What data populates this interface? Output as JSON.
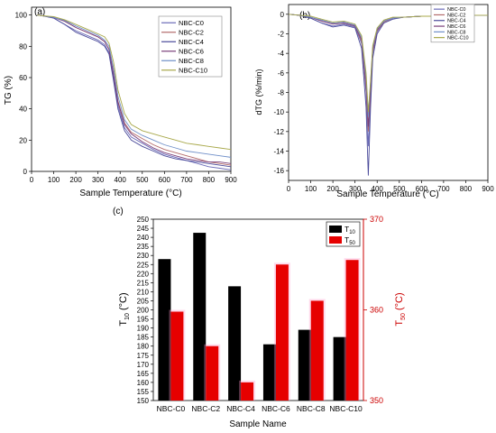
{
  "chart_data": [
    {
      "panel": "(a)",
      "type": "line",
      "xlabel": "Sample Temperature (°C)",
      "ylabel": "TG (%)",
      "xlim": [
        0,
        900
      ],
      "ylim": [
        0,
        105
      ],
      "xticks": [
        0,
        100,
        200,
        300,
        400,
        500,
        600,
        700,
        800,
        900
      ],
      "yticks": [
        0,
        20,
        40,
        60,
        80,
        100
      ],
      "legend_position": "top-right",
      "x": [
        25,
        50,
        100,
        150,
        200,
        250,
        300,
        330,
        350,
        370,
        390,
        420,
        450,
        500,
        550,
        600,
        650,
        700,
        750,
        800,
        850,
        900
      ],
      "series": [
        {
          "name": "NBC-C0",
          "color": "#6b6bb8",
          "values": [
            100,
            99.5,
            98,
            94,
            90,
            87,
            84,
            81,
            76,
            60,
            42,
            28,
            22,
            18,
            14,
            11,
            9,
            7,
            5,
            3,
            2,
            1
          ]
        },
        {
          "name": "NBC-C2",
          "color": "#b36b6b",
          "values": [
            100,
            99.5,
            98.5,
            96,
            92,
            89,
            86,
            83,
            78,
            63,
            45,
            31,
            25,
            21,
            17,
            14,
            12,
            10,
            8,
            6,
            5,
            4
          ]
        },
        {
          "name": "NBC-C4",
          "color": "#4a4a9a",
          "values": [
            100,
            99.5,
            98,
            94,
            89,
            86,
            83,
            80,
            75,
            58,
            40,
            26,
            20,
            16,
            13,
            10,
            8,
            7,
            6,
            5,
            4,
            3
          ]
        },
        {
          "name": "NBC-C6",
          "color": "#7a3f7a",
          "values": [
            100,
            99.5,
            98.5,
            96,
            92,
            89,
            86,
            83,
            78,
            62,
            44,
            30,
            24,
            19,
            15,
            12,
            10,
            8,
            7,
            6,
            6,
            5
          ]
        },
        {
          "name": "NBC-C8",
          "color": "#6f8fc8",
          "values": [
            100,
            99.5,
            98.5,
            96.5,
            93,
            90,
            87,
            84,
            80,
            66,
            48,
            33,
            27,
            23,
            20,
            17,
            15,
            13,
            12,
            11,
            10,
            9
          ]
        },
        {
          "name": "NBC-C10",
          "color": "#a8a84a",
          "values": [
            100,
            99.5,
            99,
            97,
            94,
            91,
            88,
            86,
            82,
            70,
            52,
            37,
            30,
            26,
            24,
            22,
            20,
            18,
            17,
            16,
            15,
            14
          ]
        }
      ]
    },
    {
      "panel": "(b)",
      "type": "line",
      "xlabel": "Sample Temperature (°C)",
      "ylabel": "dTG (%/min)",
      "xlim": [
        0,
        900
      ],
      "ylim": [
        -17,
        1
      ],
      "xticks": [
        0,
        100,
        200,
        300,
        400,
        500,
        600,
        700,
        800,
        900
      ],
      "yticks": [
        0,
        -2,
        -4,
        -6,
        -8,
        -10,
        -12,
        -14,
        -16
      ],
      "legend_position": "top-right",
      "x": [
        0,
        50,
        100,
        150,
        200,
        250,
        300,
        330,
        350,
        360,
        370,
        380,
        400,
        430,
        470,
        520,
        600,
        700,
        800,
        900
      ],
      "series": [
        {
          "name": "NBC-C0",
          "color": "#6b6bb8",
          "values": [
            0,
            -0.1,
            -0.4,
            -0.9,
            -1.2,
            -1.0,
            -1.3,
            -3.0,
            -8.0,
            -13.5,
            -8.5,
            -4.0,
            -1.8,
            -0.8,
            -0.4,
            -0.3,
            -0.2,
            -0.2,
            -0.1,
            -0.1
          ]
        },
        {
          "name": "NBC-C2",
          "color": "#b36b6b",
          "values": [
            0,
            -0.1,
            -0.3,
            -0.7,
            -1.0,
            -0.9,
            -1.2,
            -2.8,
            -7.5,
            -12.0,
            -8.0,
            -3.8,
            -1.7,
            -0.8,
            -0.4,
            -0.3,
            -0.2,
            -0.2,
            -0.1,
            -0.1
          ]
        },
        {
          "name": "NBC-C4",
          "color": "#4a4a9a",
          "values": [
            0,
            -0.1,
            -0.4,
            -0.9,
            -1.3,
            -1.1,
            -1.4,
            -3.5,
            -9.5,
            -16.5,
            -9.5,
            -4.5,
            -2.0,
            -0.9,
            -0.5,
            -0.3,
            -0.2,
            -0.2,
            -0.1,
            -0.1
          ]
        },
        {
          "name": "NBC-C6",
          "color": "#7a3f7a",
          "values": [
            0,
            -0.1,
            -0.3,
            -0.7,
            -1.0,
            -0.9,
            -1.2,
            -2.6,
            -7.0,
            -11.5,
            -7.5,
            -3.6,
            -1.6,
            -0.7,
            -0.4,
            -0.3,
            -0.2,
            -0.2,
            -0.1,
            -0.1
          ]
        },
        {
          "name": "NBC-C8",
          "color": "#6f8fc8",
          "values": [
            0,
            -0.1,
            -0.3,
            -0.6,
            -0.9,
            -0.8,
            -1.1,
            -2.4,
            -6.5,
            -10.5,
            -7.0,
            -3.4,
            -1.5,
            -0.7,
            -0.4,
            -0.3,
            -0.2,
            -0.2,
            -0.1,
            -0.1
          ]
        },
        {
          "name": "NBC-C10",
          "color": "#a8a84a",
          "values": [
            0,
            -0.1,
            -0.2,
            -0.5,
            -0.8,
            -0.7,
            -1.0,
            -2.2,
            -6.0,
            -10.0,
            -6.8,
            -3.2,
            -1.4,
            -0.6,
            -0.3,
            -0.3,
            -0.2,
            -0.2,
            -0.1,
            -0.1
          ]
        }
      ]
    },
    {
      "panel": "(c)",
      "type": "bar",
      "xlabel": "Sample Name",
      "ylabel": "T10 (°C)",
      "y2label": "T50 (°C)",
      "categories": [
        "NBC-C0",
        "NBC-C2",
        "NBC-C4",
        "NBC-C6",
        "NBC-C8",
        "NBC-C10"
      ],
      "ylim": [
        150,
        250
      ],
      "y2lim": [
        350,
        370
      ],
      "yticks": [
        150,
        155,
        160,
        165,
        170,
        175,
        180,
        185,
        190,
        195,
        200,
        205,
        210,
        215,
        220,
        225,
        230,
        235,
        240,
        245,
        250
      ],
      "y2ticks": [
        350,
        360,
        370
      ],
      "legend_position": "top-right",
      "series": [
        {
          "name": "T10",
          "axis": "left",
          "color": "#000000",
          "values": [
            228,
            242.5,
            213,
            181,
            189,
            185
          ]
        },
        {
          "name": "T50",
          "axis": "right",
          "color": "#e60000",
          "values": [
            359.8,
            356,
            352,
            365,
            361,
            365.5
          ]
        }
      ]
    }
  ]
}
